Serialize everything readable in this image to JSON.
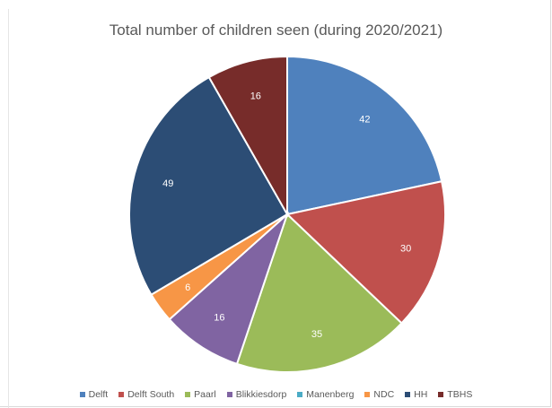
{
  "chart_data": {
    "type": "pie",
    "title": "Total number of children seen (during 2020/2021)",
    "categories": [
      "Delft",
      "Delft South",
      "Paarl",
      "Blikkiesdorp",
      "Manenberg",
      "NDC",
      "HH",
      "TBHS"
    ],
    "values": [
      42,
      30,
      35,
      16,
      0,
      6,
      49,
      16
    ],
    "labels": [
      "42",
      "30",
      "35",
      "16",
      "",
      "6",
      "49",
      "16"
    ],
    "colors": [
      "#4f81bd",
      "#c0504d",
      "#9bbb59",
      "#8064a2",
      "#4bacc6",
      "#f79646",
      "#2c4d75",
      "#772c2a"
    ],
    "legend_position": "bottom",
    "start_angle": "12 o'clock, clockwise"
  }
}
